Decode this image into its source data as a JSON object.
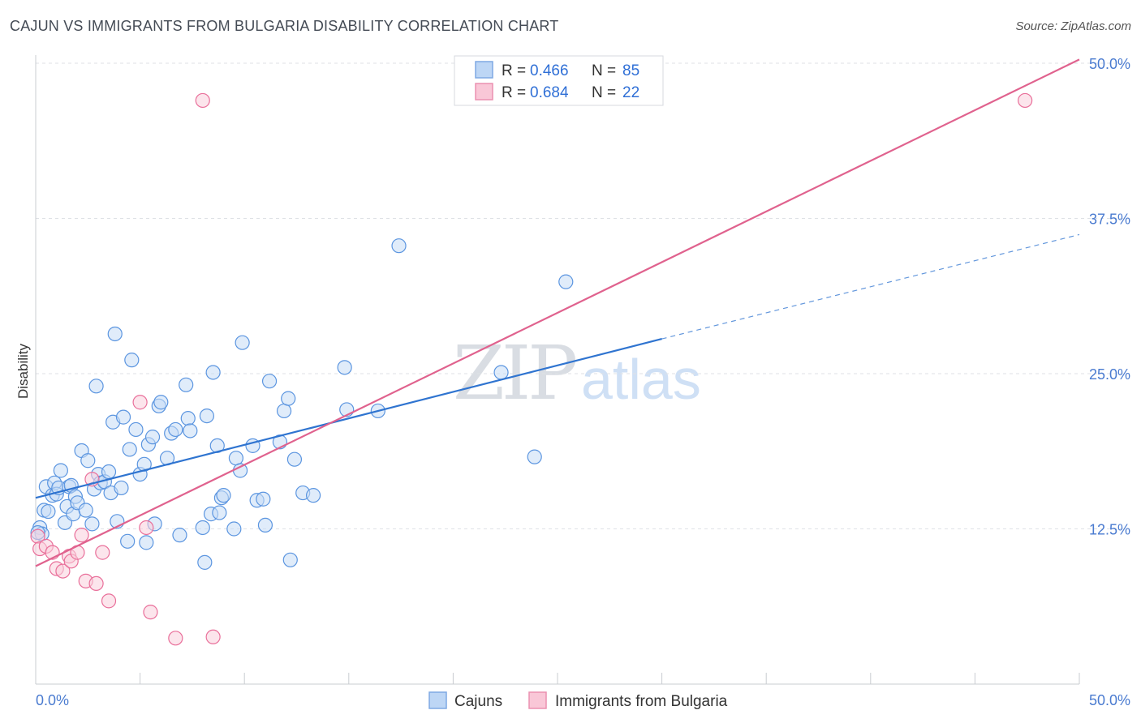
{
  "title": "CAJUN VS IMMIGRANTS FROM BULGARIA DISABILITY CORRELATION CHART",
  "source": "Source: ZipAtlas.com",
  "legend": {
    "rows": [
      {
        "r_label": "R = ",
        "r_value": "0.466",
        "n_label": "N = ",
        "n_value": "85"
      },
      {
        "r_label": "R = ",
        "r_value": "0.684",
        "n_label": "N = ",
        "n_value": "22"
      }
    ]
  },
  "watermark": {
    "zip": "ZIP",
    "atlas": "atlas"
  },
  "chart_data": {
    "type": "scatter",
    "title": "CAJUN VS IMMIGRANTS FROM BULGARIA DISABILITY CORRELATION CHART",
    "xlabel": "",
    "ylabel": "Disability",
    "xlim": [
      0,
      50
    ],
    "ylim": [
      0,
      50
    ],
    "x_tick_labels": [
      "0.0%",
      "50.0%"
    ],
    "y_ticks": [
      12.5,
      25.0,
      37.5,
      50.0
    ],
    "y_tick_labels": [
      "12.5%",
      "25.0%",
      "37.5%",
      "50.0%"
    ],
    "grid": true,
    "legend_placement": "top-center",
    "colors": {
      "cajuns": "#5b95e0",
      "bulgaria": "#e96f9a",
      "cajuns_line": "#2f74d0",
      "bulgaria_line": "#e0628e"
    },
    "series": [
      {
        "name": "Cajuns",
        "r": 0.466,
        "n": 85,
        "trend": {
          "x0": 0,
          "y0": 15.0,
          "x1": 30,
          "y1": 27.8,
          "dashed_to_x": 50,
          "dashed_to_y": 36.2
        },
        "points": [
          [
            0.2,
            12.6
          ],
          [
            0.3,
            12.1
          ],
          [
            0.4,
            14.0
          ],
          [
            0.5,
            15.9
          ],
          [
            0.6,
            13.9
          ],
          [
            0.8,
            15.2
          ],
          [
            0.9,
            16.2
          ],
          [
            1.0,
            15.3
          ],
          [
            1.1,
            15.8
          ],
          [
            1.2,
            17.2
          ],
          [
            1.4,
            13.0
          ],
          [
            1.5,
            14.3
          ],
          [
            1.6,
            15.9
          ],
          [
            1.7,
            16.0
          ],
          [
            1.8,
            13.7
          ],
          [
            1.9,
            15.1
          ],
          [
            2.0,
            14.6
          ],
          [
            2.2,
            18.8
          ],
          [
            2.4,
            14.0
          ],
          [
            2.5,
            18.0
          ],
          [
            2.7,
            12.9
          ],
          [
            2.8,
            15.7
          ],
          [
            2.9,
            24.0
          ],
          [
            3.0,
            16.9
          ],
          [
            3.1,
            16.2
          ],
          [
            3.3,
            16.3
          ],
          [
            3.5,
            17.1
          ],
          [
            3.6,
            15.4
          ],
          [
            3.7,
            21.1
          ],
          [
            3.8,
            28.2
          ],
          [
            3.9,
            13.1
          ],
          [
            4.1,
            15.8
          ],
          [
            4.2,
            21.5
          ],
          [
            4.4,
            11.5
          ],
          [
            4.5,
            18.9
          ],
          [
            4.6,
            26.1
          ],
          [
            4.8,
            20.5
          ],
          [
            5.0,
            16.9
          ],
          [
            5.2,
            17.7
          ],
          [
            5.3,
            11.4
          ],
          [
            5.4,
            19.3
          ],
          [
            5.6,
            19.9
          ],
          [
            5.7,
            12.9
          ],
          [
            5.9,
            22.4
          ],
          [
            6.0,
            22.7
          ],
          [
            6.3,
            18.2
          ],
          [
            6.5,
            20.2
          ],
          [
            6.7,
            20.5
          ],
          [
            6.9,
            12.0
          ],
          [
            7.2,
            24.1
          ],
          [
            7.3,
            21.4
          ],
          [
            7.4,
            20.4
          ],
          [
            8.0,
            12.6
          ],
          [
            8.1,
            9.8
          ],
          [
            8.2,
            21.6
          ],
          [
            8.4,
            13.7
          ],
          [
            8.5,
            25.1
          ],
          [
            8.7,
            19.2
          ],
          [
            8.8,
            13.8
          ],
          [
            8.9,
            15.0
          ],
          [
            9.0,
            15.2
          ],
          [
            9.5,
            12.5
          ],
          [
            9.6,
            18.2
          ],
          [
            9.8,
            17.2
          ],
          [
            9.9,
            27.5
          ],
          [
            10.4,
            19.2
          ],
          [
            10.6,
            14.8
          ],
          [
            10.9,
            14.9
          ],
          [
            11.0,
            12.8
          ],
          [
            11.2,
            24.4
          ],
          [
            11.7,
            19.5
          ],
          [
            11.9,
            22.0
          ],
          [
            12.1,
            23.0
          ],
          [
            12.2,
            10.0
          ],
          [
            12.4,
            18.1
          ],
          [
            12.8,
            15.4
          ],
          [
            13.3,
            15.2
          ],
          [
            14.8,
            25.5
          ],
          [
            14.9,
            22.1
          ],
          [
            16.4,
            22.0
          ],
          [
            17.4,
            35.3
          ],
          [
            22.3,
            25.1
          ],
          [
            23.9,
            18.3
          ],
          [
            25.4,
            32.4
          ],
          [
            0.1,
            12.2
          ]
        ]
      },
      {
        "name": "Immigrants from Bulgaria",
        "r": 0.684,
        "n": 22,
        "trend": {
          "x0": 0,
          "y0": 9.5,
          "x1": 50,
          "y1": 50.3
        },
        "points": [
          [
            0.1,
            11.9
          ],
          [
            0.2,
            10.9
          ],
          [
            0.5,
            11.1
          ],
          [
            0.8,
            10.6
          ],
          [
            1.0,
            9.3
          ],
          [
            1.3,
            9.1
          ],
          [
            1.6,
            10.3
          ],
          [
            1.7,
            9.9
          ],
          [
            2.0,
            10.6
          ],
          [
            2.2,
            12.0
          ],
          [
            2.4,
            8.3
          ],
          [
            2.7,
            16.5
          ],
          [
            2.9,
            8.1
          ],
          [
            3.2,
            10.6
          ],
          [
            3.5,
            6.7
          ],
          [
            5.0,
            22.7
          ],
          [
            5.3,
            12.6
          ],
          [
            5.5,
            5.8
          ],
          [
            6.7,
            3.7
          ],
          [
            8.0,
            47.0
          ],
          [
            8.5,
            3.8
          ],
          [
            47.4,
            47.0
          ]
        ]
      }
    ],
    "bottom_legend": [
      "Cajuns",
      "Immigrants from Bulgaria"
    ]
  }
}
